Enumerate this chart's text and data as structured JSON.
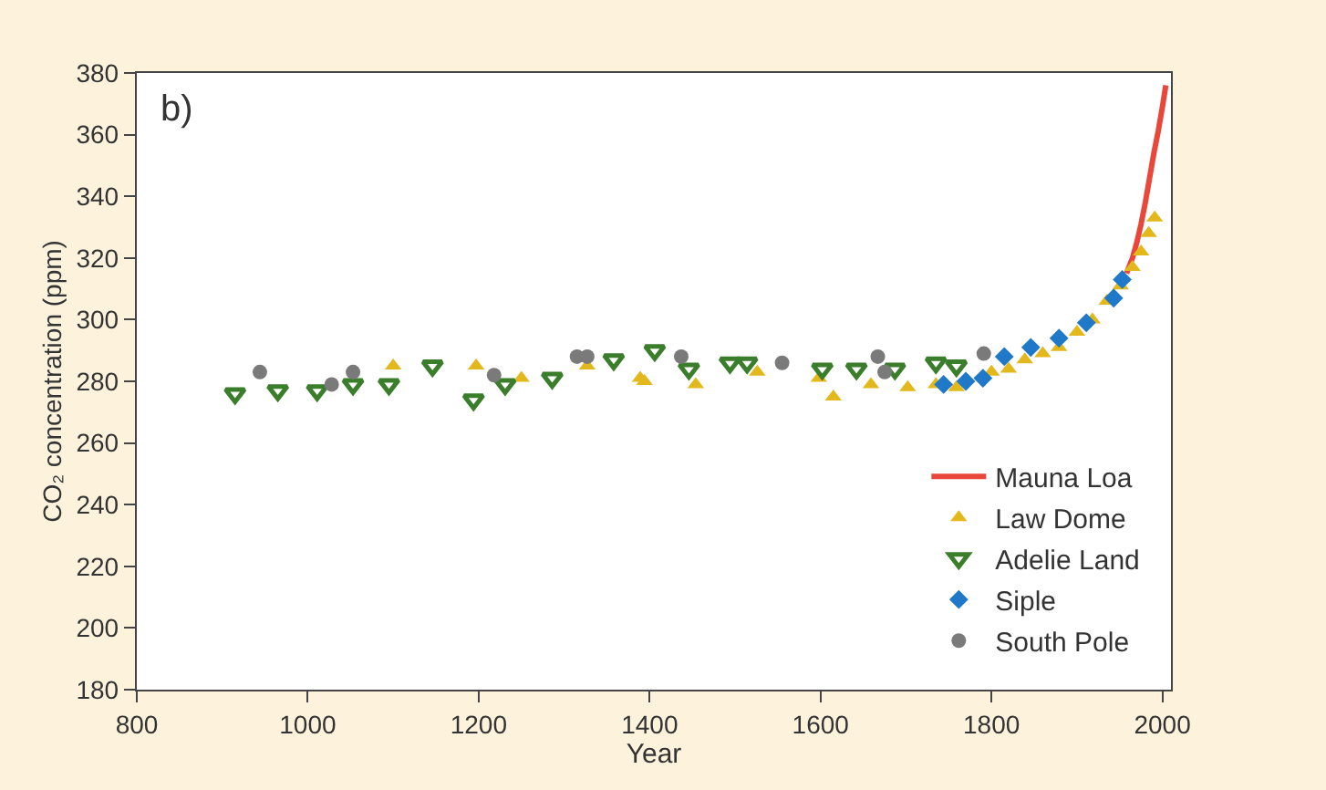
{
  "chart_data": {
    "type": "scatter",
    "xlabel": "Year",
    "ylabel": "CO₂ concentration (ppm)",
    "annotations": [
      "b)"
    ],
    "xlim": [
      800,
      2010
    ],
    "xticks": [
      800,
      1000,
      1200,
      1400,
      1600,
      1800,
      2000
    ],
    "ylim": [
      180,
      380
    ],
    "yticks": [
      180,
      200,
      220,
      240,
      260,
      280,
      300,
      320,
      340,
      360,
      380
    ],
    "legend": "bottom right",
    "series": [
      {
        "name": "Mauna Loa",
        "type": "line",
        "color": "#e8473a",
        "marker": "none",
        "line_style": "solid",
        "x": [
          1958,
          1965,
          1970,
          1975,
          1980,
          1985,
          1990,
          1995,
          2000,
          2004
        ],
        "values": [
          315,
          320,
          325,
          331,
          338,
          346,
          354,
          361,
          369,
          376
        ]
      },
      {
        "name": "Law Dome",
        "color": "#e3b81c",
        "marker": "triangle",
        "x": [
          1100,
          1197,
          1250,
          1327,
          1389,
          1394,
          1454,
          1526,
          1598,
          1615,
          1659,
          1702,
          1735,
          1759,
          1800,
          1820,
          1839,
          1860,
          1879,
          1900,
          1918,
          1935,
          1951,
          1965,
          1975,
          1984,
          1991
        ],
        "values": [
          285,
          285,
          281,
          285,
          281,
          280,
          279,
          283,
          281,
          275,
          279,
          278,
          279,
          278,
          283,
          284,
          287,
          289,
          291,
          296,
          300,
          306,
          311,
          317,
          322,
          328,
          333
        ]
      },
      {
        "name": "Adelie Land",
        "color": "#3a7d2a",
        "marker": "triangle-down",
        "x": [
          915,
          965,
          1011,
          1053,
          1095,
          1146,
          1194,
          1231,
          1286,
          1358,
          1406,
          1446,
          1494,
          1514,
          1602,
          1642,
          1687,
          1735,
          1759
        ],
        "values": [
          276,
          277,
          277,
          279,
          279,
          285,
          274,
          279,
          281,
          287,
          290,
          284,
          286,
          286,
          284,
          284,
          284,
          286,
          285
        ]
      },
      {
        "name": "Siple",
        "color": "#1f78c8",
        "marker": "diamond",
        "x": [
          1744,
          1770,
          1790,
          1815,
          1846,
          1879,
          1911,
          1943,
          1953
        ],
        "values": [
          279,
          280,
          281,
          288,
          291,
          294,
          299,
          307,
          313
        ]
      },
      {
        "name": "South Pole",
        "color": "#7a7a7a",
        "marker": "circle",
        "x": [
          944,
          1028,
          1053,
          1218,
          1315,
          1327,
          1437,
          1555,
          1667,
          1675,
          1791
        ],
        "values": [
          283,
          279,
          283,
          282,
          288,
          288,
          288,
          286,
          288,
          283,
          289
        ]
      }
    ]
  }
}
